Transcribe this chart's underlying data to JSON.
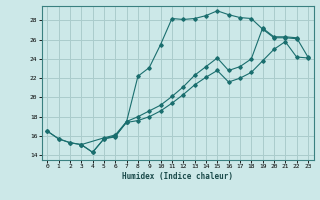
{
  "title": "",
  "xlabel": "Humidex (Indice chaleur)",
  "ylabel": "",
  "bg_color": "#cce8e8",
  "grid_color": "#aacccc",
  "line_color": "#1a6e6e",
  "xlim": [
    -0.5,
    23.5
  ],
  "ylim": [
    13.5,
    29.5
  ],
  "xticks": [
    0,
    1,
    2,
    3,
    4,
    5,
    6,
    7,
    8,
    9,
    10,
    11,
    12,
    13,
    14,
    15,
    16,
    17,
    18,
    19,
    20,
    21,
    22,
    23
  ],
  "yticks": [
    14,
    16,
    18,
    20,
    22,
    24,
    26,
    28
  ],
  "line1_x": [
    0,
    1,
    2,
    3,
    4,
    5,
    6,
    7,
    8,
    9,
    10,
    11,
    12,
    13,
    14,
    15,
    16,
    17,
    18,
    19,
    20,
    21,
    22
  ],
  "line1_y": [
    16.5,
    15.7,
    15.3,
    15.1,
    14.3,
    15.7,
    15.9,
    17.5,
    22.2,
    23.1,
    25.5,
    28.2,
    28.1,
    28.2,
    28.5,
    29.0,
    28.6,
    28.3,
    28.2,
    27.1,
    26.2,
    26.2,
    26.1
  ],
  "line2_x": [
    0,
    1,
    2,
    3,
    4,
    5,
    6,
    7,
    8,
    9,
    10,
    11,
    12,
    13,
    14,
    15,
    16,
    17,
    18,
    19,
    20,
    21,
    22,
    23
  ],
  "line2_y": [
    16.5,
    15.7,
    15.3,
    15.1,
    14.3,
    15.7,
    16.0,
    17.4,
    17.6,
    18.0,
    18.6,
    19.4,
    20.3,
    21.3,
    22.1,
    22.8,
    21.6,
    22.0,
    22.6,
    23.8,
    25.0,
    25.8,
    24.2,
    24.1
  ],
  "line3_x": [
    3,
    5,
    6,
    7,
    8,
    9,
    10,
    11,
    12,
    13,
    14,
    15,
    16,
    17,
    18,
    19,
    20,
    21,
    22,
    23
  ],
  "line3_y": [
    15.1,
    15.8,
    16.1,
    17.5,
    18.0,
    18.6,
    19.2,
    20.1,
    21.1,
    22.3,
    23.2,
    24.1,
    22.8,
    23.2,
    24.0,
    27.2,
    26.3,
    26.3,
    26.2,
    24.2
  ]
}
